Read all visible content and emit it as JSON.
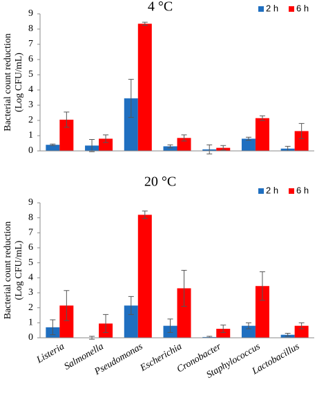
{
  "chart_data": [
    {
      "type": "bar",
      "title": "4 °C",
      "ylabel": [
        "Bacterial count reduction",
        "(Log CFU/mL)"
      ],
      "ylim": [
        0,
        9
      ],
      "yticks": [
        0,
        1,
        2,
        3,
        4,
        5,
        6,
        7,
        8,
        9
      ],
      "legend": "top-right",
      "series": [
        {
          "name": "2 h",
          "color": "#1f6fc0",
          "values": [
            0.4,
            0.35,
            3.45,
            0.3,
            0.1,
            0.8,
            0.15
          ],
          "errors": [
            0.05,
            0.4,
            1.25,
            0.1,
            0.3,
            0.1,
            0.15
          ]
        },
        {
          "name": "6 h",
          "color": "#ff0000",
          "values": [
            2.05,
            0.8,
            8.35,
            0.85,
            0.2,
            2.15,
            1.3
          ],
          "errors": [
            0.5,
            0.25,
            0.1,
            0.2,
            0.15,
            0.15,
            0.5
          ]
        }
      ]
    },
    {
      "type": "bar",
      "title": "20 °C",
      "ylabel": [
        "Bacterial count reduction",
        "(Log CFU/mL)"
      ],
      "categories": [
        "Listeria",
        "Salmonella",
        "Pseudomonas",
        "Escherichia",
        "Cronobacter",
        "Staphylococcus",
        "Lactobacillus"
      ],
      "ylim": [
        0,
        9
      ],
      "yticks": [
        0,
        1,
        2,
        3,
        4,
        5,
        6,
        7,
        8,
        9
      ],
      "legend": "top-right",
      "series": [
        {
          "name": "2 h",
          "color": "#1f6fc0",
          "values": [
            0.7,
            0,
            2.15,
            0.8,
            0.05,
            0.8,
            0.2
          ],
          "errors": [
            0.5,
            0.1,
            0.6,
            0.45,
            0.05,
            0.2,
            0.1
          ]
        },
        {
          "name": "6 h",
          "color": "#ff0000",
          "values": [
            2.15,
            0.95,
            8.2,
            3.3,
            0.6,
            3.45,
            0.8
          ],
          "errors": [
            1.0,
            0.6,
            0.25,
            1.2,
            0.25,
            0.95,
            0.2
          ]
        }
      ]
    }
  ]
}
